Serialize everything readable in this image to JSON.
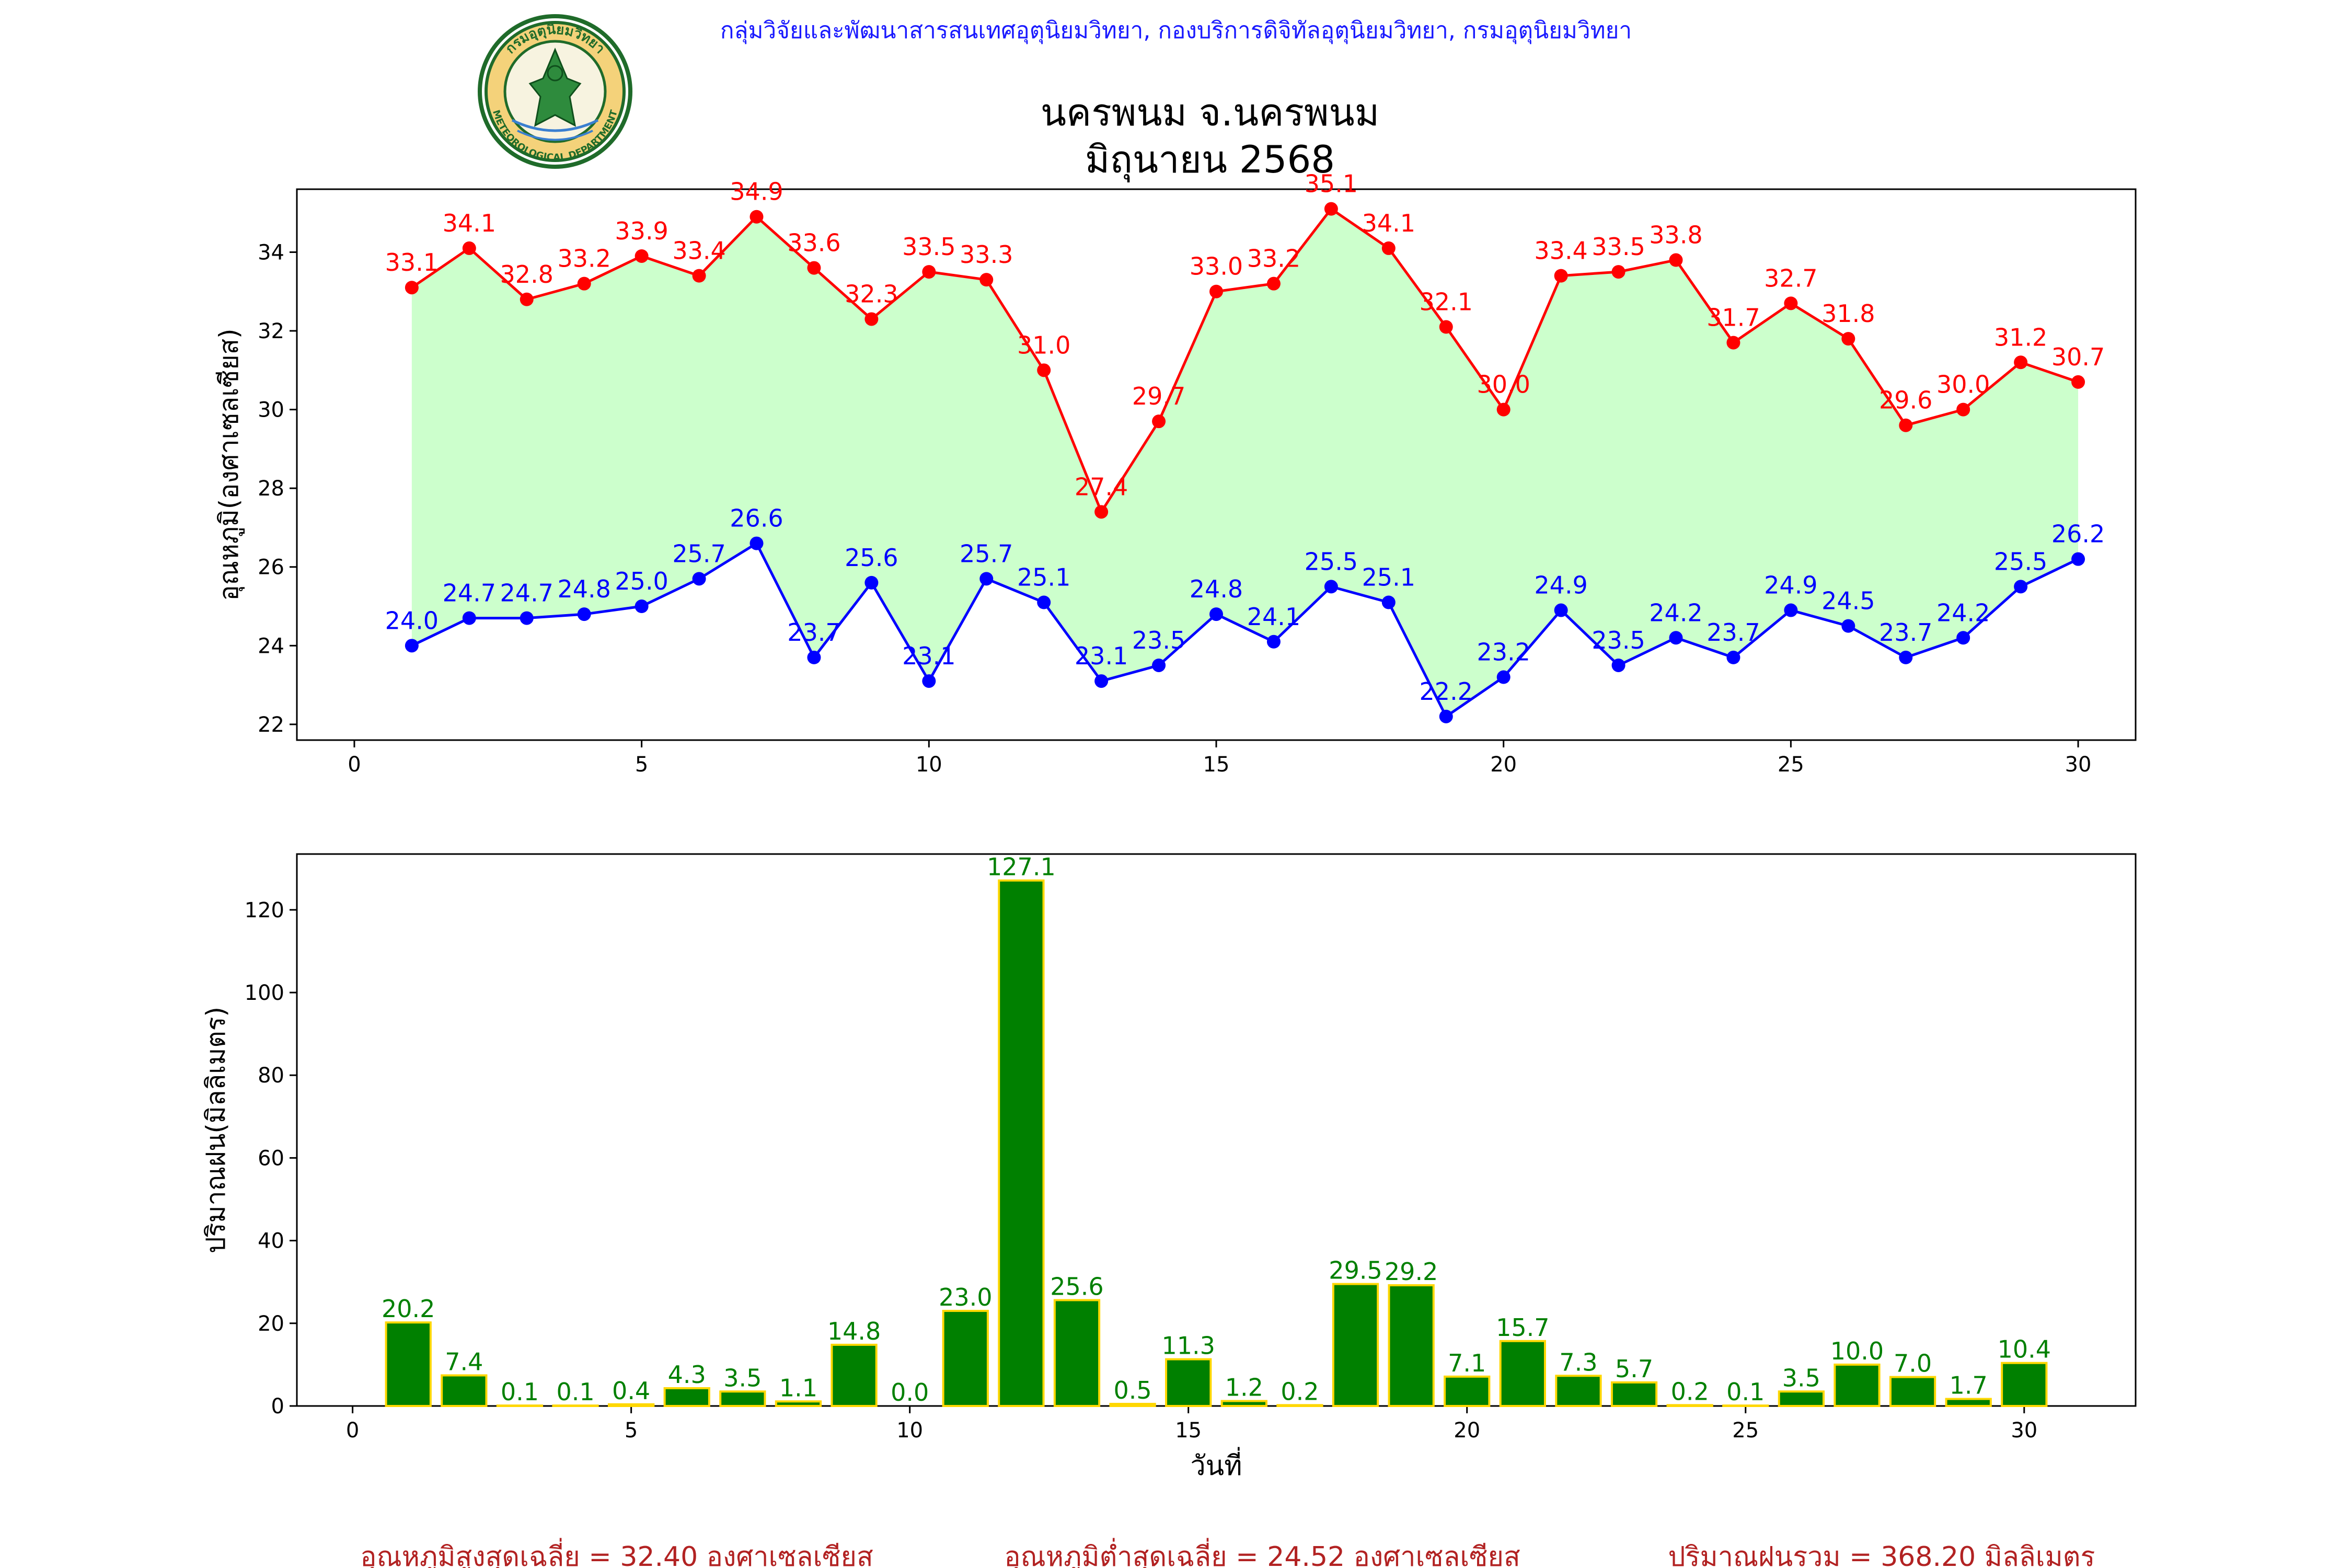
{
  "header": {
    "agency_line": "กลุ่มวิจัยและพัฒนาสารสนเทศอุตุนิยมวิทยา, กองบริการดิจิทัลอุตุนิยมวิทยา, กรมอุตุนิยมวิทยา",
    "title_line1": "นครพนม จ.นครพนม",
    "title_line2": "มิถุนายน 2568",
    "logo_top_text": "กรมอุตุนิยมวิทยา",
    "logo_bottom_text": "METEOROLOGICAL DEPARTMENT"
  },
  "colors": {
    "agency_text": "#1a1aff",
    "max_line": "#ff0000",
    "min_line": "#0000ff",
    "band_fill": "#ccffcc",
    "bar_fill": "#008000",
    "bar_edge": "#ffd700",
    "bar_label": "#008000",
    "footer_text": "#b22222"
  },
  "chart_data": [
    {
      "type": "line",
      "x": [
        1,
        2,
        3,
        4,
        5,
        6,
        7,
        8,
        9,
        10,
        11,
        12,
        13,
        14,
        15,
        16,
        17,
        18,
        19,
        20,
        21,
        22,
        23,
        24,
        25,
        26,
        27,
        28,
        29,
        30
      ],
      "series": [
        {
          "values": [
            33.1,
            34.1,
            32.8,
            33.2,
            33.9,
            33.4,
            34.9,
            33.6,
            32.3,
            33.5,
            33.3,
            31.0,
            27.4,
            29.7,
            33.0,
            33.2,
            35.1,
            34.1,
            32.1,
            30.0,
            33.4,
            33.5,
            33.8,
            31.7,
            32.7,
            31.8,
            29.6,
            30.0,
            31.2,
            30.7
          ]
        },
        {
          "values": [
            24.0,
            24.7,
            24.7,
            24.8,
            25.0,
            25.7,
            26.6,
            23.7,
            25.6,
            23.1,
            25.7,
            25.1,
            23.1,
            23.5,
            24.8,
            24.1,
            25.5,
            25.1,
            22.2,
            23.2,
            24.9,
            23.5,
            24.2,
            23.7,
            24.9,
            24.5,
            23.7,
            24.2,
            25.5,
            26.2
          ]
        }
      ],
      "fill_between_series": true,
      "ylabel": "อุณหภูมิ(องศาเซลเซียส)",
      "xlabel": "",
      "xlim": [
        -1,
        31
      ],
      "ylim": [
        21.6,
        35.6
      ],
      "xticks": [
        0,
        5,
        10,
        15,
        20,
        25,
        30
      ],
      "yticks": [
        22,
        24,
        26,
        28,
        30,
        32,
        34
      ]
    },
    {
      "type": "bar",
      "x": [
        1,
        2,
        3,
        4,
        5,
        6,
        7,
        8,
        9,
        10,
        11,
        12,
        13,
        14,
        15,
        16,
        17,
        18,
        19,
        20,
        21,
        22,
        23,
        24,
        25,
        26,
        27,
        28,
        29,
        30
      ],
      "values": [
        20.2,
        7.4,
        0.1,
        0.1,
        0.4,
        4.3,
        3.5,
        1.1,
        14.8,
        0.0,
        23.0,
        127.1,
        25.6,
        0.5,
        11.3,
        1.2,
        0.2,
        29.5,
        29.2,
        7.1,
        15.7,
        7.3,
        5.7,
        0.2,
        0.1,
        3.5,
        10.0,
        7.0,
        1.7,
        10.4
      ],
      "ylabel": "ปริมาณฝน(มิลลิเมตร)",
      "xlabel": "วันที่",
      "xlim": [
        -1,
        32
      ],
      "ylim": [
        0,
        133.5
      ],
      "xticks": [
        0,
        5,
        10,
        15,
        20,
        25,
        30
      ],
      "yticks": [
        0,
        20,
        40,
        60,
        80,
        100,
        120
      ]
    }
  ],
  "footer": {
    "avg_max": "อุณหภูมิสูงสุดเฉลี่ย = 32.40 องศาเซลเซียส",
    "avg_min": "อุณหภูมิต่ำสุดเฉลี่ย = 24.52 องศาเซลเซียส",
    "rain_total": "ปริมาณฝนรวม = 368.20 มิลลิเมตร"
  }
}
